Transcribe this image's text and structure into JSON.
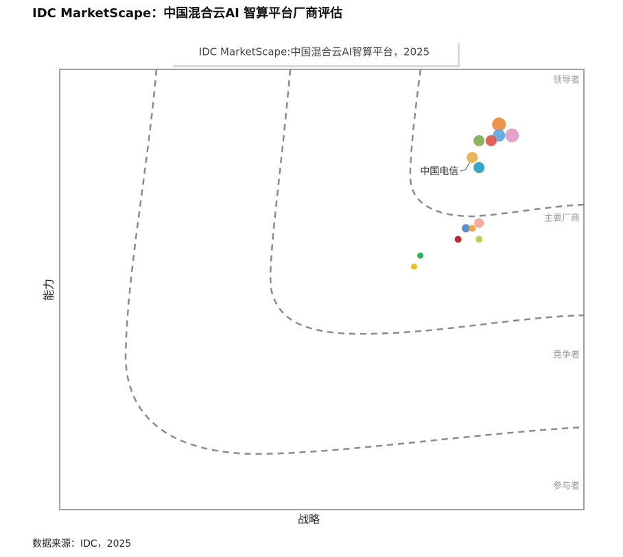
{
  "page_title": "IDC MarketScape：中国混合云AI 智算平台厂商评估",
  "source": "数据来源：IDC，2025",
  "chart_data": {
    "type": "bubble",
    "title": "IDC MarketScape:中国混合云AI智算平台，2025",
    "x_label": "战略",
    "y_label": "能力",
    "zones": [
      "领导者",
      "主要厂商",
      "竞争者",
      "参与者"
    ],
    "xlim": [
      0,
      100
    ],
    "ylim": [
      0,
      100
    ],
    "x": [
      83.8,
      86.3,
      83.8,
      82.3,
      80.0,
      78.7,
      80.0,
      80.0,
      77.5,
      78.7,
      76.0,
      80.0,
      68.8,
      67.6
    ],
    "values": [
      87.5,
      85.0,
      85.0,
      83.8,
      83.8,
      80.0,
      77.7,
      65.1,
      63.9,
      63.9,
      61.4,
      61.4,
      57.7,
      55.2
    ],
    "sizes": [
      10,
      10,
      9,
      8,
      8,
      8,
      8,
      7,
      6,
      5,
      5,
      5,
      4.5,
      4.5
    ],
    "colors": [
      "#f08a3c",
      "#e39ac8",
      "#5ba7e3",
      "#e0534a",
      "#7fb04f",
      "#e8b04a",
      "#2a9dc0",
      "#f4a49a",
      "#4a86c8",
      "#f0a040",
      "#c0141c",
      "#b3cc4a",
      "#1aaa4a",
      "#f5b800"
    ],
    "annotation": "中国电信"
  }
}
